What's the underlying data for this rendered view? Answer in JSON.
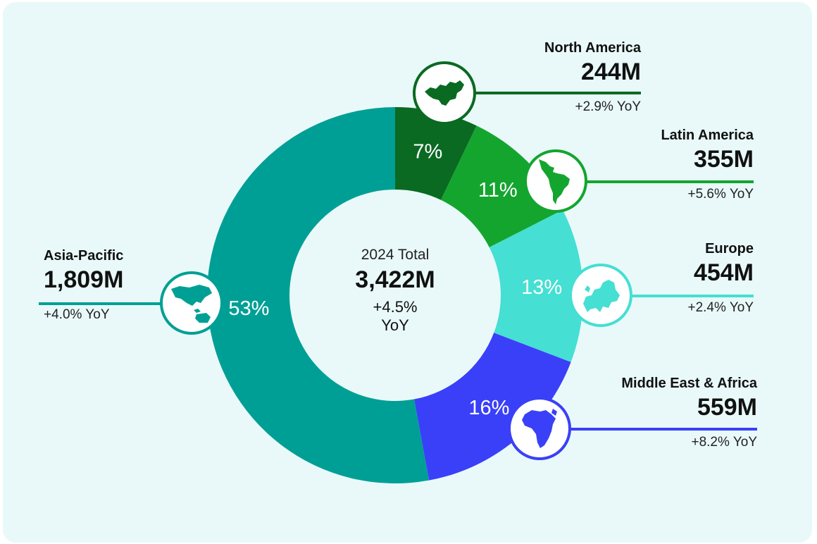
{
  "center": {
    "title": "2024 Total",
    "total": "3,422M",
    "yoy": "+4.5% YoY"
  },
  "regions": {
    "north_america": {
      "name": "North America",
      "value": "244M",
      "yoy": "+2.9% YoY",
      "share": "7%",
      "color": "#0a6a22",
      "icon": "north-america-map-icon"
    },
    "latin_america": {
      "name": "Latin America",
      "value": "355M",
      "yoy": "+5.6% YoY",
      "share": "11%",
      "color": "#14a52f",
      "icon": "latin-america-map-icon"
    },
    "europe": {
      "name": "Europe",
      "value": "454M",
      "yoy": "+2.4% YoY",
      "share": "13%",
      "color": "#45dfd3",
      "icon": "europe-map-icon"
    },
    "mea": {
      "name": "Middle East & Africa",
      "value": "559M",
      "yoy": "+8.2% YoY",
      "share": "16%",
      "color": "#3a40f8",
      "icon": "africa-map-icon"
    },
    "apac": {
      "name": "Asia-Pacific",
      "value": "1,809M",
      "yoy": "+4.0% YoY",
      "share": "53%",
      "color": "#009f95",
      "icon": "asia-pacific-map-icon"
    }
  },
  "chart_data": {
    "type": "pie",
    "title": "2024 Total",
    "categories": [
      "North America",
      "Latin America",
      "Europe",
      "Middle East & Africa",
      "Asia-Pacific"
    ],
    "values": [
      244,
      355,
      454,
      559,
      1809
    ],
    "percent_labels": [
      "7%",
      "11%",
      "13%",
      "16%",
      "53%"
    ],
    "unit": "M",
    "total": 3422,
    "yoy_percent": [
      2.9,
      5.6,
      2.4,
      8.2,
      4.0
    ],
    "total_yoy_percent": 4.5,
    "colors": [
      "#0a6a22",
      "#14a52f",
      "#45dfd3",
      "#3a40f8",
      "#009f95"
    ],
    "start": "12 o'clock",
    "direction": "clockwise",
    "donut": true
  }
}
